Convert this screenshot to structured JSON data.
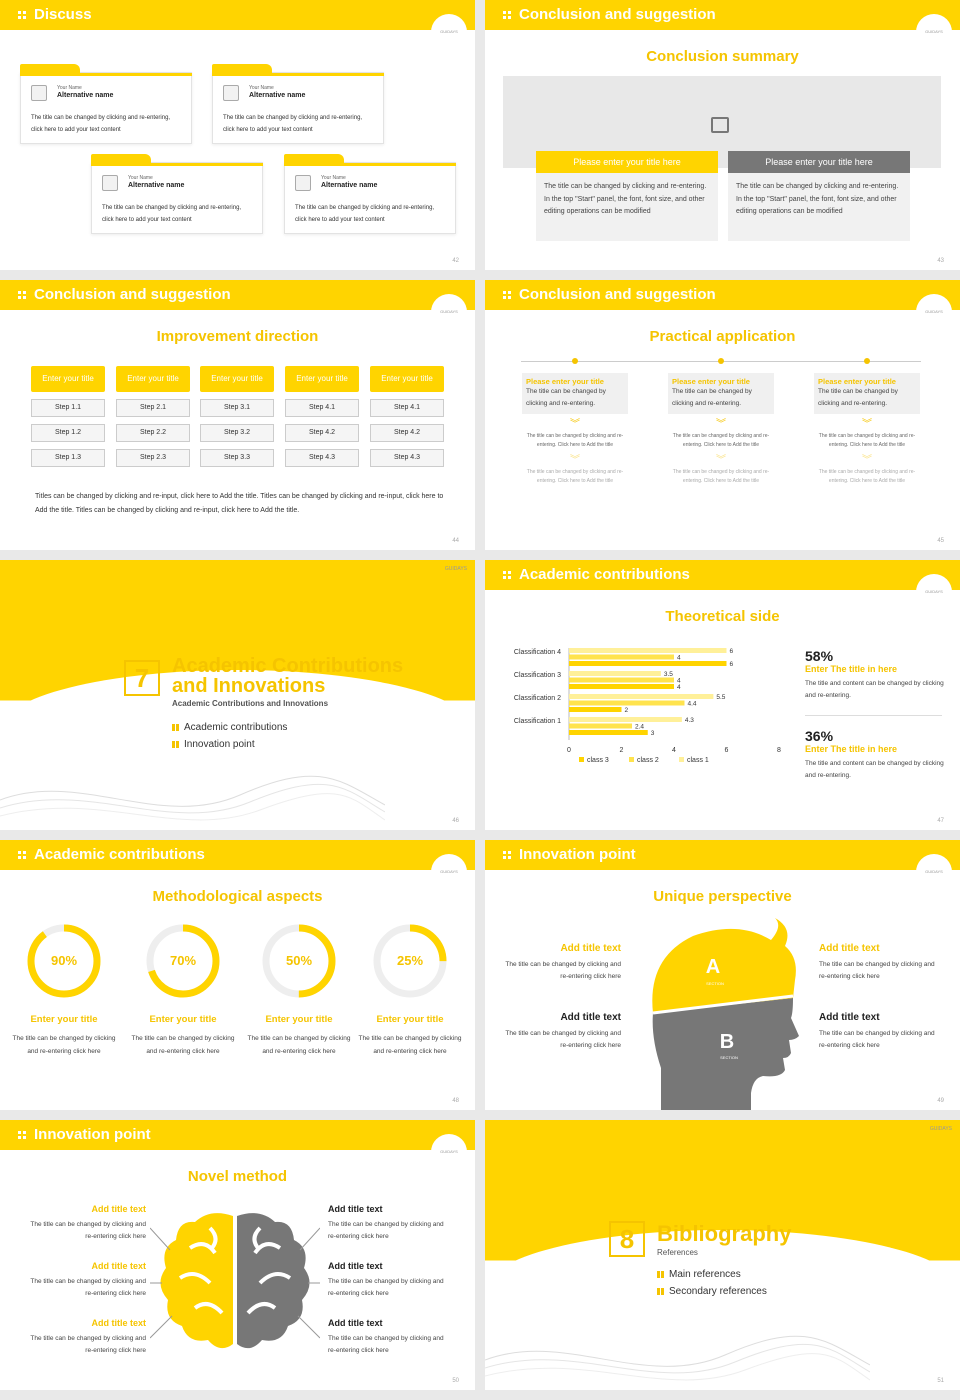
{
  "slide42": {
    "header": "Discuss",
    "page": "42",
    "cards": [
      {
        "name": "Your Name",
        "alt": "Alternative name",
        "text": "The title can be changed by clicking and re-entering, click here to add your text content"
      },
      {
        "name": "Your Name",
        "alt": "Alternative name",
        "text": "The title can be changed by clicking and re-entering, click here to add your text content"
      },
      {
        "name": "Your Name",
        "alt": "Alternative name",
        "text": "The title can be changed by clicking and re-entering, click here to add your text content"
      },
      {
        "name": "Your Name",
        "alt": "Alternative name",
        "text": "The title can be changed by clicking and re-entering, click here to add your text content"
      }
    ]
  },
  "slide43": {
    "header": "Conclusion and suggestion",
    "subtitle": "Conclusion summary",
    "page": "43",
    "boxes": [
      {
        "title": "Please enter your title here",
        "text": "The title can be changed by clicking and re-entering. In the top \"Start\" panel, the font, font size, and other editing operations can be modified",
        "color": "#ffd400"
      },
      {
        "title": "Please enter your title here",
        "text": "The title can be changed by clicking and re-entering. In the top \"Start\" panel, the font, font size, and other editing operations can be modified",
        "color": "#777777"
      }
    ]
  },
  "slide44": {
    "header": "Conclusion and suggestion",
    "subtitle": "Improvement direction",
    "page": "44",
    "columns": [
      {
        "title": "Enter your title",
        "steps": [
          "Step 1.1",
          "Step 1.2",
          "Step 1.3"
        ]
      },
      {
        "title": "Enter your title",
        "steps": [
          "Step 2.1",
          "Step 2.2",
          "Step 2.3"
        ]
      },
      {
        "title": "Enter your title",
        "steps": [
          "Step 3.1",
          "Step 3.2",
          "Step 3.3"
        ]
      },
      {
        "title": "Enter your title",
        "steps": [
          "Step 4.1",
          "Step 4.2",
          "Step 4.3"
        ]
      },
      {
        "title": "Enter your title",
        "steps": [
          "Step 4.1",
          "Step 4.2",
          "Step 4.3"
        ]
      }
    ],
    "paragraph": "Titles can be changed by clicking and re-input, click here to Add the title. Titles can be changed by clicking and re-input, click here to Add the title. Titles can be changed by clicking and re-input, click here to Add the title."
  },
  "slide45": {
    "header": "Conclusion and suggestion",
    "subtitle": "Practical application",
    "page": "45",
    "columns": [
      {
        "title": "Please enter your title",
        "desc": "The title can be changed by clicking and re-entering.",
        "g1": "The title can be changed by clicking and re-entering. Click here to Add the title",
        "g2": "The title can be changed by clicking and re-entering. Click here to Add the title"
      },
      {
        "title": "Please enter your title",
        "desc": "The title can be changed by clicking and re-entering.",
        "g1": "The title can be changed by clicking and re-entering. Click here to Add the title",
        "g2": "The title can be changed by clicking and re-entering. Click here to Add the title"
      },
      {
        "title": "Please enter your title",
        "desc": "The title can be changed by clicking and re-entering.",
        "g1": "The title can be changed by clicking and re-entering. Click here to Add the title",
        "g2": "The title can be changed by clicking and re-entering. Click here to Add the title"
      }
    ]
  },
  "slide46": {
    "number": "7",
    "title1": "Academic Contributions",
    "title2": "and Innovations",
    "subtitle": "Academic Contributions and Innovations",
    "items": [
      "Academic contributions",
      "Innovation point"
    ],
    "page": "46"
  },
  "slide47": {
    "header": "Academic contributions",
    "subtitle": "Theoretical side",
    "page": "47",
    "stats": [
      {
        "percent": "58%",
        "title": "Enter The title in here",
        "text": "The title and content can be changed by clicking and re-entering."
      },
      {
        "percent": "36%",
        "title": "Enter The title in here",
        "text": "The title and content can be changed by clicking and re-entering."
      }
    ]
  },
  "chart_data": {
    "type": "bar",
    "orientation": "horizontal",
    "categories": [
      "Classification 1",
      "Classification 2",
      "Classification 3",
      "Classification 4"
    ],
    "series": [
      {
        "name": "class 3",
        "values": [
          3,
          2,
          4,
          6
        ],
        "color": "#ffd400"
      },
      {
        "name": "class 2",
        "values": [
          2.4,
          4.4,
          4,
          4
        ],
        "color": "#ffe34d"
      },
      {
        "name": "class 1",
        "values": [
          4.3,
          5.5,
          3.5,
          6
        ],
        "color": "#fff099"
      }
    ],
    "xlim": [
      0,
      8
    ],
    "xticks": [
      "0",
      "2",
      "4",
      "6",
      "8"
    ],
    "legend": "bottom",
    "title": ""
  },
  "slide48": {
    "header": "Academic contributions",
    "subtitle": "Methodological aspects",
    "page": "48",
    "rings": [
      {
        "value": 90,
        "label": "90%",
        "title": "Enter your title",
        "text": "The title can be changed by clicking and re-entering click here"
      },
      {
        "value": 70,
        "label": "70%",
        "title": "Enter your title",
        "text": "The title can be changed by clicking and re-entering click here"
      },
      {
        "value": 50,
        "label": "50%",
        "title": "Enter your title",
        "text": "The title can be changed by clicking and re-entering click here"
      },
      {
        "value": 25,
        "label": "25%",
        "title": "Enter your title",
        "text": "The title can be changed by clicking and re-entering click here"
      }
    ]
  },
  "slide49": {
    "header": "Innovation point",
    "subtitle": "Unique perspective",
    "page": "49",
    "letterA": "A",
    "labelA": "SECTION",
    "letterB": "B",
    "labelB": "SECTION",
    "blocks": [
      {
        "title": "Add title text",
        "text": "The title can be changed by clicking and re-entering click here"
      },
      {
        "title": "Add title text",
        "text": "The title can be changed by clicking and re-entering click here"
      },
      {
        "title": "Add title text",
        "text": "The title can be changed by clicking and re-entering click here"
      },
      {
        "title": "Add title text",
        "text": "The title can be changed by clicking and re-entering click here"
      }
    ]
  },
  "slide50": {
    "header": "Innovation point",
    "subtitle": "Novel method",
    "page": "50",
    "left": [
      {
        "title": "Add title text",
        "text": "The title can be changed by clicking and re-entering click here"
      },
      {
        "title": "Add title text",
        "text": "The title can be changed by clicking and re-entering click here"
      },
      {
        "title": "Add title text",
        "text": "The title can be changed by clicking and re-entering click here"
      }
    ],
    "right": [
      {
        "title": "Add title text",
        "text": "The title can be changed by clicking and re-entering click here"
      },
      {
        "title": "Add title text",
        "text": "The title can be changed by clicking and re-entering click here"
      },
      {
        "title": "Add title text",
        "text": "The title can be changed by clicking and re-entering click here"
      }
    ]
  },
  "slide51": {
    "number": "8",
    "title": "Bibliography",
    "subtitle": "References",
    "items": [
      "Main references",
      "Secondary references"
    ],
    "page": "51"
  },
  "logo_text": "GUIDAYS"
}
